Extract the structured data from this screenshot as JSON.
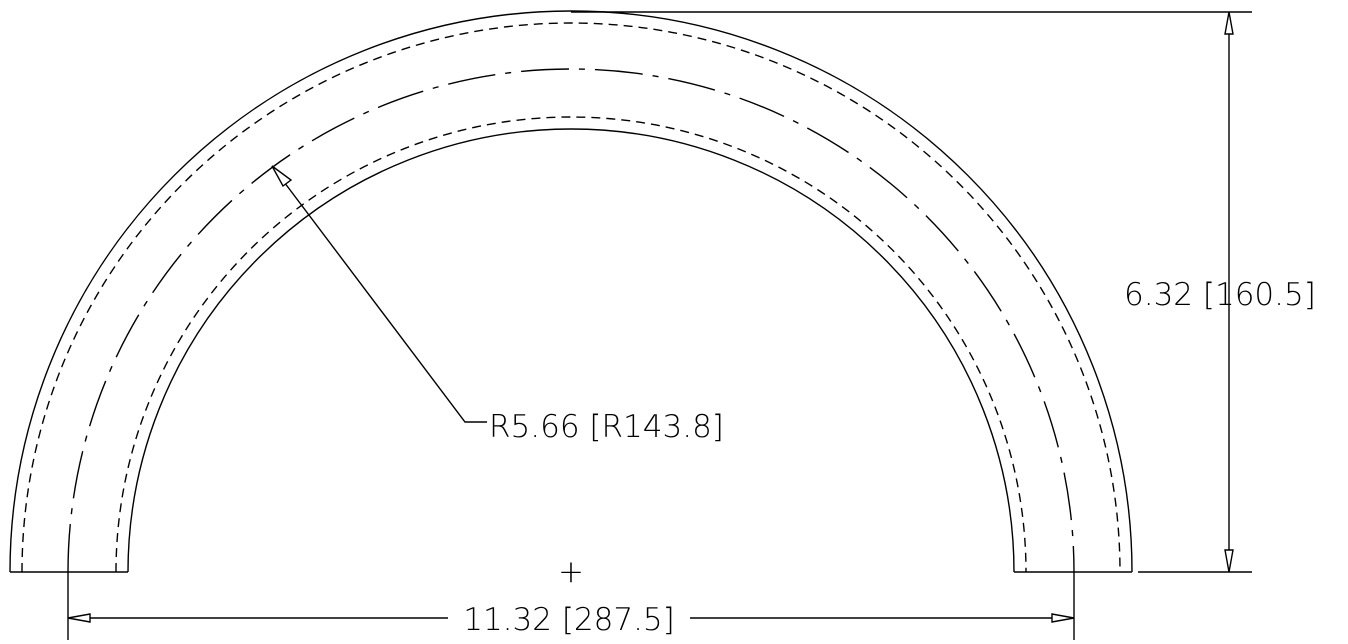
{
  "drawing": {
    "dimensions": {
      "radius_label": "R5.66 [R143.8]",
      "height_label": "6.32 [160.5]",
      "width_label": "11.32 [287.5]"
    },
    "center_mark": "+"
  }
}
